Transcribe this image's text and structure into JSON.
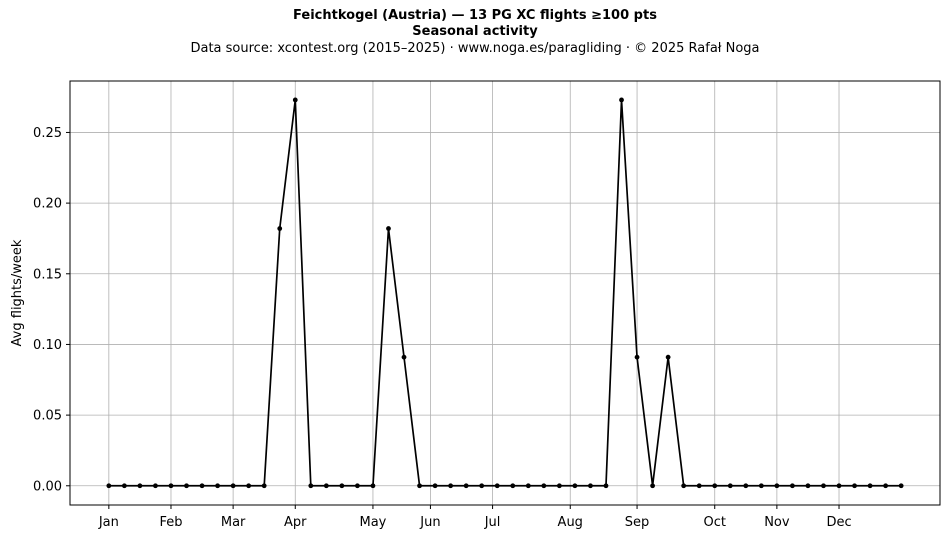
{
  "title": "Feichtkogel (Austria)  —  13 PG XC flights ≥100 pts",
  "subtitle": "Seasonal activity",
  "source": "Data source: xcontest.org (2015–2025)  ·  www.noga.es/paragliding  ·  © 2025 Rafał Noga",
  "chart_data": {
    "type": "line",
    "ylabel": "Avg flights/week",
    "xlabel": "",
    "x_unit": "week of year",
    "xlim": [
      -2.5,
      53.5
    ],
    "ylim": [
      -0.0136,
      0.2864
    ],
    "grid": true,
    "yticks": [
      0.0,
      0.05,
      0.1,
      0.15,
      0.2,
      0.25
    ],
    "ytick_labels": [
      "0.00",
      "0.05",
      "0.10",
      "0.15",
      "0.20",
      "0.25"
    ],
    "xticks": [
      {
        "label": "Jan",
        "week": 0
      },
      {
        "label": "Feb",
        "week": 4
      },
      {
        "label": "Mar",
        "week": 8
      },
      {
        "label": "Apr",
        "week": 12
      },
      {
        "label": "May",
        "week": 17
      },
      {
        "label": "Jun",
        "week": 20.7
      },
      {
        "label": "Jul",
        "week": 24.7
      },
      {
        "label": "Aug",
        "week": 29.7
      },
      {
        "label": "Sep",
        "week": 34
      },
      {
        "label": "Oct",
        "week": 39
      },
      {
        "label": "Nov",
        "week": 43
      },
      {
        "label": "Dec",
        "week": 47
      }
    ],
    "series": [
      {
        "color": "#000000",
        "x": [
          0,
          1,
          2,
          3,
          4,
          5,
          6,
          7,
          8,
          9,
          10,
          11,
          12,
          13,
          14,
          15,
          16,
          17,
          18,
          19,
          20,
          21,
          22,
          23,
          24,
          25,
          26,
          27,
          28,
          29,
          30,
          31,
          32,
          33,
          34,
          35,
          36,
          37,
          38,
          39,
          40,
          41,
          42,
          43,
          44,
          45,
          46,
          47,
          48,
          49,
          50,
          51
        ],
        "values": [
          0,
          0,
          0,
          0,
          0,
          0,
          0,
          0,
          0,
          0,
          0,
          0.182,
          0.273,
          0,
          0,
          0,
          0,
          0,
          0.182,
          0.091,
          0,
          0,
          0,
          0,
          0,
          0,
          0,
          0,
          0,
          0,
          0,
          0,
          0,
          0.273,
          0.091,
          0,
          0.091,
          0,
          0,
          0,
          0,
          0,
          0,
          0,
          0,
          0,
          0,
          0,
          0,
          0,
          0,
          0
        ]
      }
    ]
  }
}
